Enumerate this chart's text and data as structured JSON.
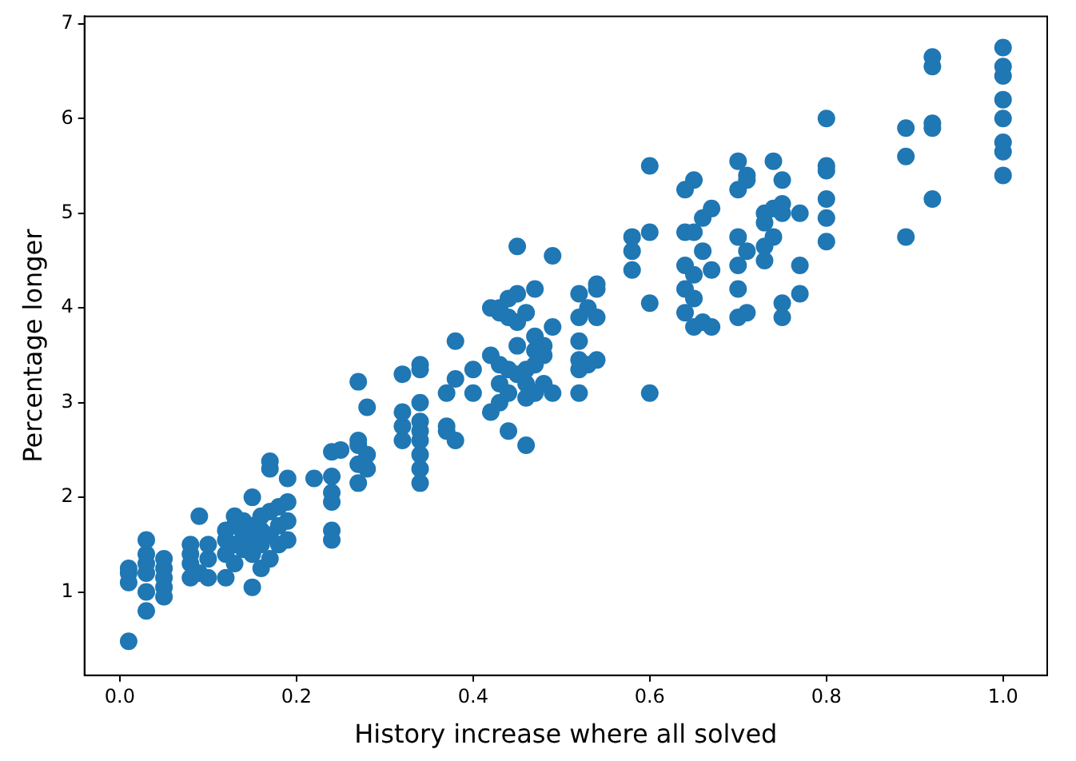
{
  "chart_data": {
    "type": "scatter",
    "xlabel": "History increase where all solved",
    "ylabel": "Percentage longer",
    "xlim": [
      -0.04,
      1.05
    ],
    "ylim": [
      0.12,
      7.08
    ],
    "xticks": [
      {
        "value": 0,
        "label": "0.0"
      },
      {
        "value": 0.2,
        "label": "0.2"
      },
      {
        "value": 0.4,
        "label": "0.4"
      },
      {
        "value": 0.6,
        "label": "0.6"
      },
      {
        "value": 0.8,
        "label": "0.8"
      },
      {
        "value": 1,
        "label": "1.0"
      }
    ],
    "yticks": [
      1,
      2,
      3,
      4,
      5,
      6,
      7
    ],
    "grid": false,
    "legend": false,
    "marker": "circle",
    "series": [
      {
        "color": "#1f77b4",
        "x": [
          0.01,
          0.01,
          0.01,
          0.01,
          0.03,
          0.03,
          0.03,
          0.03,
          0.03,
          0.03,
          0.05,
          0.05,
          0.05,
          0.05,
          0.05,
          0.08,
          0.08,
          0.08,
          0.08,
          0.09,
          0.09,
          0.1,
          0.1,
          0.1,
          0.12,
          0.12,
          0.12,
          0.12,
          0.13,
          0.13,
          0.13,
          0.13,
          0.14,
          0.14,
          0.14,
          0.15,
          0.15,
          0.15,
          0.15,
          0.15,
          0.16,
          0.16,
          0.16,
          0.16,
          0.17,
          0.17,
          0.17,
          0.17,
          0.17,
          0.18,
          0.18,
          0.18,
          0.19,
          0.19,
          0.19,
          0.19,
          0.22,
          0.24,
          0.24,
          0.24,
          0.24,
          0.24,
          0.24,
          0.25,
          0.27,
          0.27,
          0.27,
          0.27,
          0.27,
          0.28,
          0.28,
          0.28,
          0.32,
          0.32,
          0.32,
          0.32,
          0.34,
          0.34,
          0.34,
          0.34,
          0.34,
          0.34,
          0.34,
          0.34,
          0.34,
          0.37,
          0.37,
          0.37,
          0.38,
          0.38,
          0.38,
          0.4,
          0.4,
          0.42,
          0.42,
          0.42,
          0.43,
          0.43,
          0.43,
          0.43,
          0.43,
          0.44,
          0.44,
          0.44,
          0.44,
          0.44,
          0.45,
          0.45,
          0.45,
          0.45,
          0.45,
          0.46,
          0.46,
          0.46,
          0.46,
          0.46,
          0.47,
          0.47,
          0.47,
          0.47,
          0.47,
          0.48,
          0.48,
          0.48,
          0.49,
          0.49,
          0.49,
          0.52,
          0.52,
          0.52,
          0.52,
          0.52,
          0.52,
          0.53,
          0.53,
          0.54,
          0.54,
          0.54,
          0.54,
          0.58,
          0.58,
          0.58,
          0.6,
          0.6,
          0.6,
          0.6,
          0.64,
          0.64,
          0.64,
          0.64,
          0.64,
          0.65,
          0.65,
          0.65,
          0.65,
          0.65,
          0.66,
          0.66,
          0.66,
          0.67,
          0.67,
          0.67,
          0.7,
          0.7,
          0.7,
          0.7,
          0.7,
          0.7,
          0.71,
          0.71,
          0.71,
          0.71,
          0.73,
          0.73,
          0.73,
          0.73,
          0.74,
          0.74,
          0.74,
          0.75,
          0.75,
          0.75,
          0.75,
          0.75,
          0.77,
          0.77,
          0.77,
          0.8,
          0.8,
          0.8,
          0.8,
          0.8,
          0.8,
          0.89,
          0.89,
          0.89,
          0.92,
          0.92,
          0.92,
          0.92,
          0.92,
          1,
          1,
          1,
          1,
          1,
          1,
          1,
          1
        ],
        "values": [
          0.48,
          1.1,
          1.2,
          1.25,
          0.8,
          1.0,
          1.2,
          1.3,
          1.4,
          1.55,
          0.95,
          1.05,
          1.15,
          1.25,
          1.35,
          1.15,
          1.3,
          1.4,
          1.5,
          1.8,
          1.2,
          1.15,
          1.35,
          1.5,
          1.15,
          1.4,
          1.55,
          1.65,
          1.3,
          1.5,
          1.7,
          1.8,
          1.45,
          1.6,
          1.75,
          1.05,
          1.4,
          1.55,
          1.7,
          2.0,
          1.25,
          1.5,
          1.65,
          1.8,
          1.35,
          1.6,
          1.85,
          2.3,
          2.38,
          1.5,
          1.7,
          1.9,
          1.55,
          1.75,
          1.95,
          2.2,
          2.2,
          1.55,
          1.65,
          1.95,
          2.05,
          2.22,
          2.48,
          2.5,
          2.15,
          2.35,
          2.55,
          2.6,
          3.22,
          2.3,
          2.45,
          2.95,
          2.6,
          2.75,
          2.9,
          3.3,
          2.15,
          2.3,
          2.45,
          2.6,
          2.7,
          2.8,
          3.0,
          3.35,
          3.4,
          2.7,
          2.75,
          3.1,
          2.6,
          3.25,
          3.65,
          3.1,
          3.35,
          2.9,
          3.5,
          4.0,
          3.0,
          3.2,
          3.4,
          3.95,
          4.0,
          2.7,
          3.1,
          3.35,
          3.9,
          4.1,
          3.3,
          3.6,
          3.85,
          4.15,
          4.65,
          2.55,
          3.05,
          3.2,
          3.35,
          3.95,
          3.1,
          3.4,
          3.55,
          3.7,
          4.2,
          3.2,
          3.5,
          3.6,
          3.1,
          3.8,
          4.55,
          3.1,
          3.35,
          3.45,
          3.65,
          3.9,
          4.15,
          3.4,
          4.0,
          3.45,
          3.9,
          4.2,
          4.25,
          4.4,
          4.6,
          4.75,
          3.1,
          4.05,
          4.8,
          5.5,
          3.95,
          4.2,
          4.45,
          4.8,
          5.25,
          3.8,
          4.1,
          4.35,
          4.8,
          5.35,
          3.85,
          4.6,
          4.95,
          3.8,
          4.4,
          5.05,
          3.9,
          4.2,
          4.45,
          4.75,
          5.25,
          5.55,
          3.95,
          4.6,
          5.35,
          5.4,
          4.5,
          4.65,
          4.9,
          5.0,
          4.75,
          5.05,
          5.55,
          3.9,
          4.05,
          5.0,
          5.1,
          5.35,
          4.15,
          4.45,
          5.0,
          4.7,
          4.95,
          5.15,
          5.45,
          5.5,
          6.0,
          4.75,
          5.6,
          5.9,
          5.15,
          5.9,
          5.95,
          6.55,
          6.65,
          5.4,
          5.65,
          5.75,
          6.0,
          6.2,
          6.45,
          6.55,
          6.75
        ]
      }
    ]
  }
}
